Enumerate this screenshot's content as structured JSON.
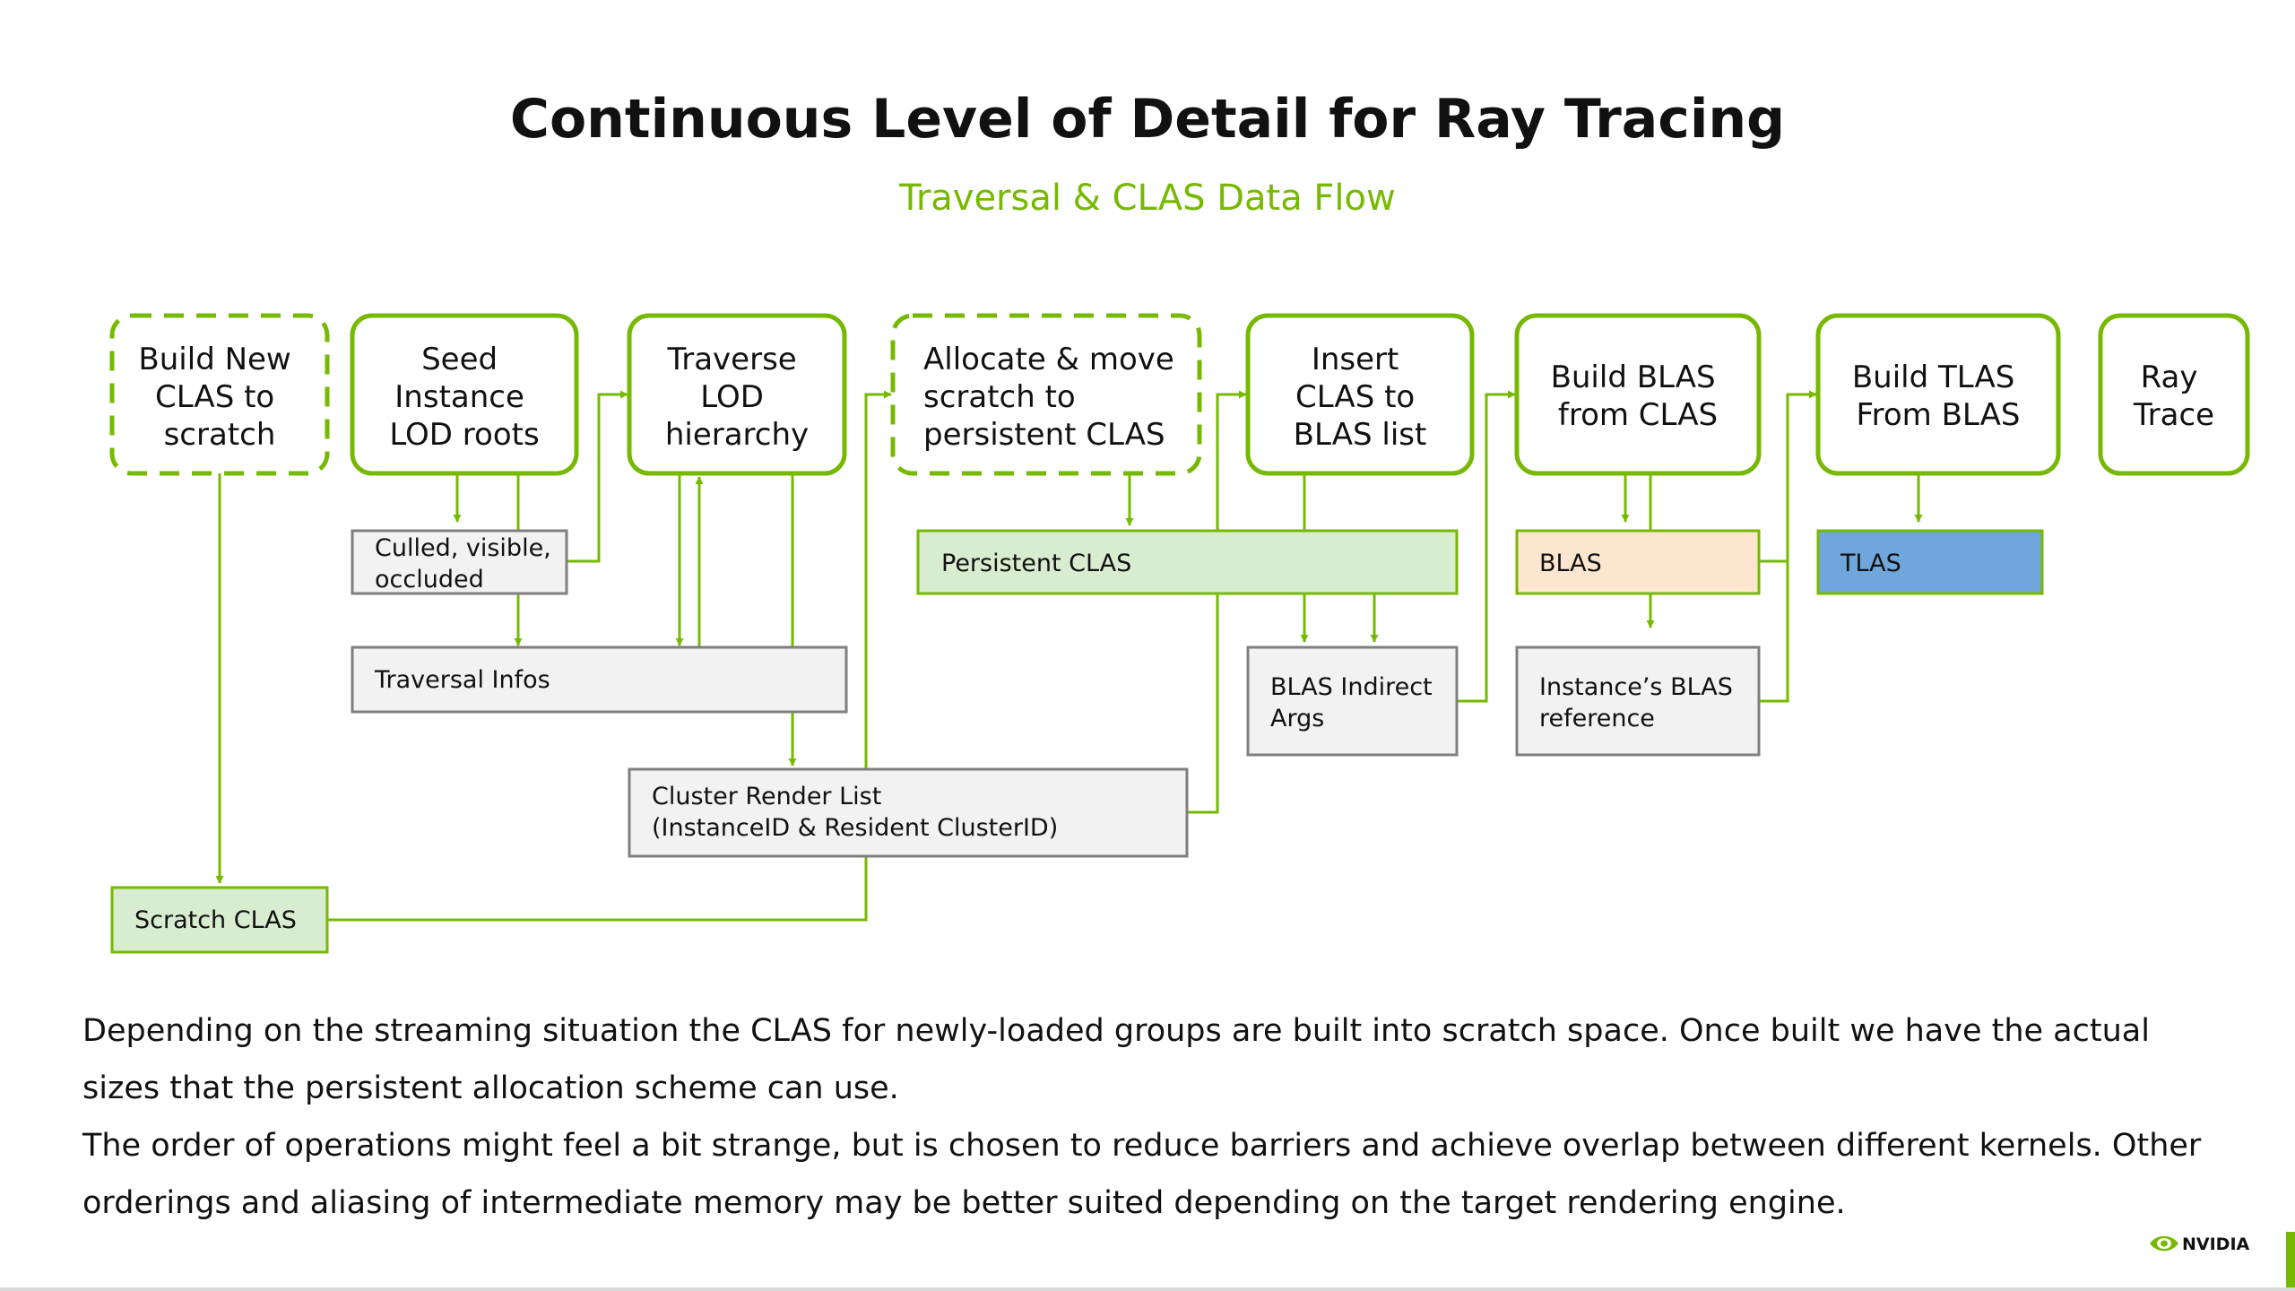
{
  "title": "Continuous Level of Detail for Ray Tracing",
  "subtitle": "Traversal & CLAS Data Flow",
  "colors": {
    "accent": "#76b900",
    "stage_border": "#76b900",
    "green_fill": "#d8eccf",
    "grey_fill": "#f2f2f2",
    "grey_border": "#7f7f7f",
    "blas_fill": "#fde6cf",
    "tlas_fill": "#6fa6dc"
  },
  "stages": [
    {
      "id": "build-new-clas",
      "lines": [
        "Build New",
        "CLAS to",
        "scratch"
      ],
      "style": "dashed"
    },
    {
      "id": "seed-instance",
      "lines": [
        "Seed",
        "Instance",
        "LOD roots"
      ],
      "style": "solid"
    },
    {
      "id": "traverse-lod",
      "lines": [
        "Traverse",
        "LOD",
        "hierarchy"
      ],
      "style": "solid"
    },
    {
      "id": "allocate-move",
      "lines": [
        "Allocate & move",
        "scratch to",
        "persistent CLAS"
      ],
      "style": "dashed"
    },
    {
      "id": "insert-clas",
      "lines": [
        "Insert",
        "CLAS to",
        "BLAS list"
      ],
      "style": "solid"
    },
    {
      "id": "build-blas",
      "lines": [
        "Build BLAS",
        "from CLAS"
      ],
      "style": "solid"
    },
    {
      "id": "build-tlas",
      "lines": [
        "Build TLAS",
        "From BLAS"
      ],
      "style": "solid"
    },
    {
      "id": "ray-trace",
      "lines": [
        "Ray",
        "Trace"
      ],
      "style": "solid"
    }
  ],
  "buffers": [
    {
      "id": "culled",
      "lines": [
        "Culled, visible,",
        "occluded"
      ],
      "fill": "grey"
    },
    {
      "id": "traversal-infos",
      "lines": [
        "Traversal Infos"
      ],
      "fill": "grey"
    },
    {
      "id": "cluster-render-list",
      "lines": [
        "Cluster Render List",
        "(InstanceID & Resident ClusterID)"
      ],
      "fill": "grey"
    },
    {
      "id": "scratch-clas",
      "lines": [
        "Scratch CLAS"
      ],
      "fill": "green"
    },
    {
      "id": "persistent-clas",
      "lines": [
        "Persistent CLAS"
      ],
      "fill": "green"
    },
    {
      "id": "blas-indirect",
      "lines": [
        "BLAS Indirect",
        "Args"
      ],
      "fill": "grey"
    },
    {
      "id": "blas",
      "lines": [
        "BLAS"
      ],
      "fill": "peach"
    },
    {
      "id": "instance-blas-ref",
      "lines": [
        "Instance’s BLAS",
        "reference"
      ],
      "fill": "grey"
    },
    {
      "id": "tlas",
      "lines": [
        "TLAS"
      ],
      "fill": "blue"
    }
  ],
  "description": [
    "Depending on the streaming situation the CLAS for newly-loaded groups are built into scratch space. Once built we have the actual sizes that the persistent allocation scheme can use.",
    "The order of operations might feel a bit strange, but is chosen to reduce barriers and achieve overlap between different kernels. Other orderings and aliasing of intermediate memory may be better suited depending on the target rendering engine."
  ],
  "logo": {
    "text": "NVIDIA"
  }
}
